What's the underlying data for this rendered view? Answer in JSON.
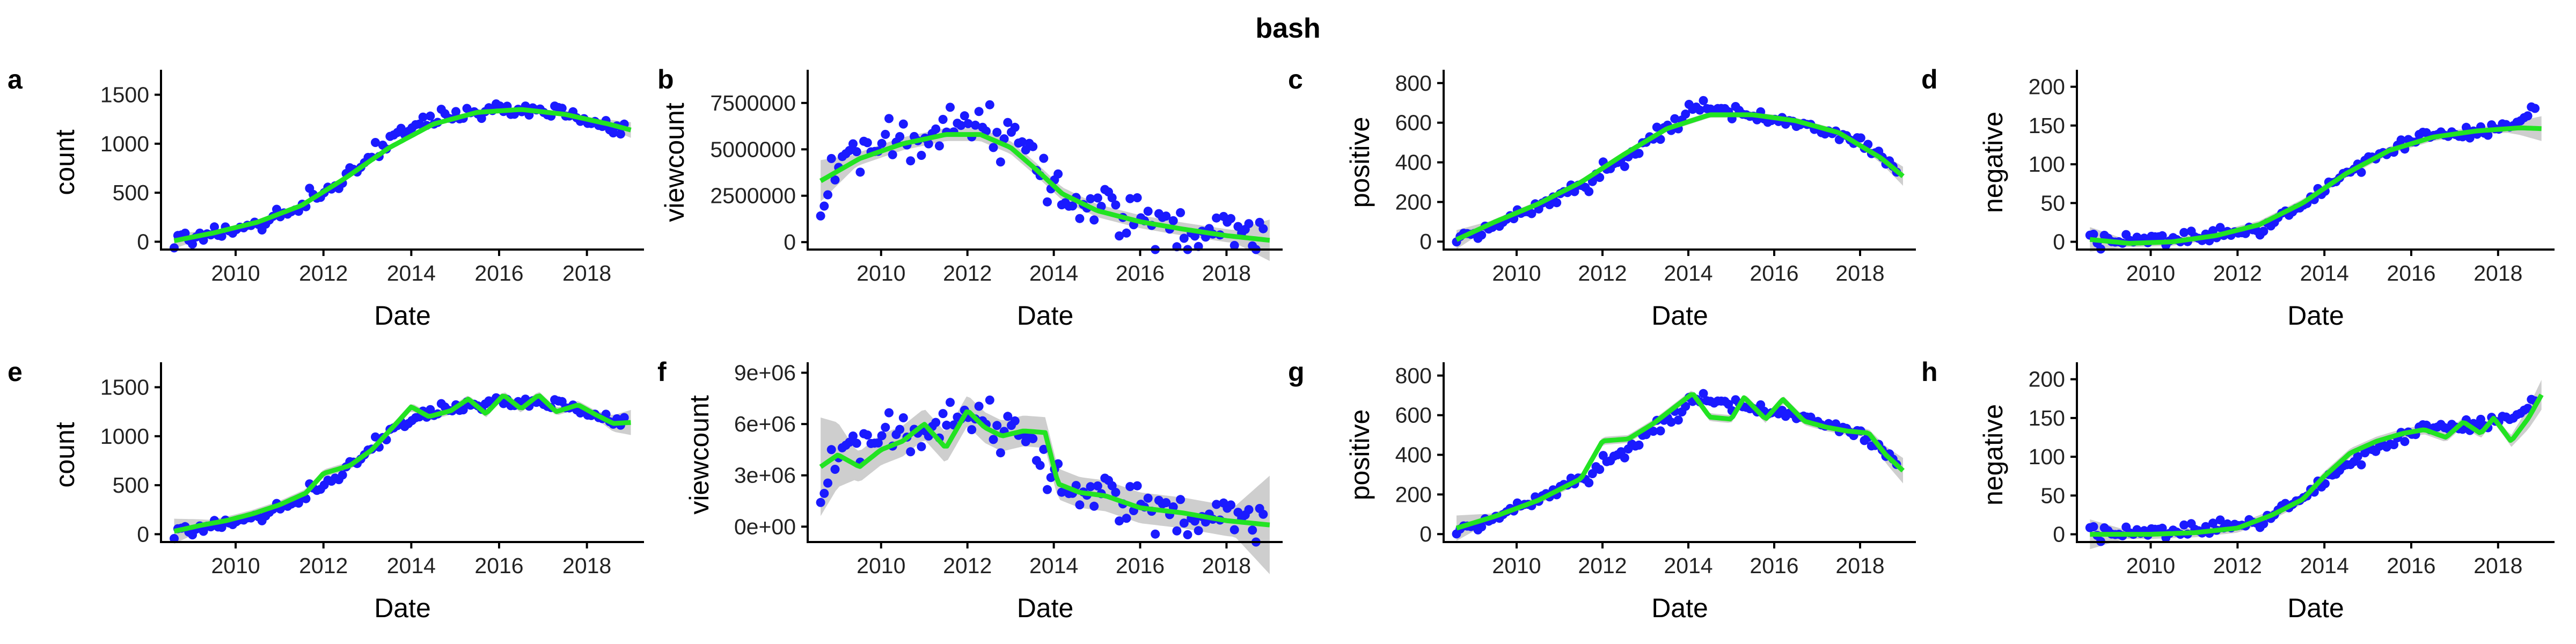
{
  "figure_title": "bash",
  "colors": {
    "points": "#1a1aff",
    "fit": "#22e322",
    "band": "#bdbdbd"
  },
  "chart_data": [
    {
      "panel": "a",
      "type": "scatter",
      "fit": "loess",
      "xlabel": "Date",
      "ylabel": "count",
      "xlim": [
        2008.3,
        2019.3
      ],
      "ylim": [
        -80,
        1700
      ],
      "xticks": [
        2010,
        2012,
        2014,
        2016,
        2018
      ],
      "yticks": [
        0,
        500,
        1000,
        1500
      ],
      "ytick_labels": [
        "0",
        "500",
        "1000",
        "1500"
      ],
      "points_anchors": [
        [
          2008.6,
          20
        ],
        [
          2009.5,
          100
        ],
        [
          2010.5,
          180
        ],
        [
          2011.5,
          350
        ],
        [
          2012.5,
          650
        ],
        [
          2013.5,
          1050
        ],
        [
          2014.5,
          1250
        ],
        [
          2015.5,
          1330
        ],
        [
          2016.5,
          1360
        ],
        [
          2017.5,
          1320
        ],
        [
          2018.5,
          1170
        ],
        [
          2019.0,
          1150
        ]
      ],
      "fit_line": [
        [
          2008.6,
          10
        ],
        [
          2009.5,
          90
        ],
        [
          2010.5,
          200
        ],
        [
          2011.5,
          370
        ],
        [
          2012.5,
          650
        ],
        [
          2013.5,
          960
        ],
        [
          2014.5,
          1200
        ],
        [
          2015.5,
          1320
        ],
        [
          2016.5,
          1350
        ],
        [
          2017.5,
          1300
        ],
        [
          2018.5,
          1200
        ],
        [
          2019.0,
          1140
        ]
      ],
      "band": 25,
      "scatter": 90
    },
    {
      "panel": "b",
      "type": "scatter",
      "fit": "loess",
      "xlabel": "Date",
      "ylabel": "viewcount",
      "xlim": [
        2008.3,
        2019.3
      ],
      "ylim": [
        -400000,
        9000000
      ],
      "xticks": [
        2010,
        2012,
        2014,
        2016,
        2018
      ],
      "yticks": [
        0,
        2500000,
        5000000,
        7500000
      ],
      "ytick_labels": [
        "0",
        "2500000",
        "5000000",
        "7500000"
      ],
      "points_anchors": [
        [
          2008.6,
          2000000
        ],
        [
          2009.2,
          4800000
        ],
        [
          2010.0,
          5000000
        ],
        [
          2010.8,
          5500000
        ],
        [
          2011.5,
          6000000
        ],
        [
          2012.3,
          6300000
        ],
        [
          2013.0,
          5600000
        ],
        [
          2013.6,
          4200000
        ],
        [
          2014.2,
          2200000
        ],
        [
          2015.0,
          1700000
        ],
        [
          2016.0,
          1100000
        ],
        [
          2017.0,
          800000
        ],
        [
          2018.0,
          400000
        ],
        [
          2019.0,
          100000
        ]
      ],
      "fit_line": [
        [
          2008.6,
          3300000
        ],
        [
          2009.5,
          4500000
        ],
        [
          2010.5,
          5300000
        ],
        [
          2011.5,
          5800000
        ],
        [
          2012.3,
          5800000
        ],
        [
          2013.0,
          5100000
        ],
        [
          2013.6,
          3900000
        ],
        [
          2014.2,
          2600000
        ],
        [
          2015.0,
          1700000
        ],
        [
          2016.0,
          1100000
        ],
        [
          2017.0,
          700000
        ],
        [
          2018.0,
          350000
        ],
        [
          2019.0,
          100000
        ]
      ],
      "band": 350000,
      "scatter": 1400000
    },
    {
      "panel": "c",
      "type": "scatter",
      "fit": "loess",
      "xlabel": "Date",
      "ylabel": "positive",
      "xlim": [
        2008.3,
        2019.3
      ],
      "ylim": [
        -40,
        840
      ],
      "xticks": [
        2010,
        2012,
        2014,
        2016,
        2018
      ],
      "yticks": [
        0,
        200,
        400,
        600,
        800
      ],
      "ytick_labels": [
        "0",
        "200",
        "400",
        "600",
        "800"
      ],
      "points_anchors": [
        [
          2008.6,
          20
        ],
        [
          2009.5,
          90
        ],
        [
          2010.5,
          170
        ],
        [
          2011.5,
          280
        ],
        [
          2012.5,
          430
        ],
        [
          2013.5,
          580
        ],
        [
          2014.2,
          700
        ],
        [
          2015.0,
          650
        ],
        [
          2016.0,
          620
        ],
        [
          2017.0,
          570
        ],
        [
          2018.0,
          500
        ],
        [
          2019.0,
          330
        ]
      ],
      "fit_line": [
        [
          2008.6,
          10
        ],
        [
          2009.5,
          100
        ],
        [
          2010.5,
          190
        ],
        [
          2011.5,
          300
        ],
        [
          2012.5,
          440
        ],
        [
          2013.5,
          570
        ],
        [
          2014.5,
          640
        ],
        [
          2015.5,
          640
        ],
        [
          2016.5,
          610
        ],
        [
          2017.5,
          550
        ],
        [
          2018.5,
          420
        ],
        [
          2019.0,
          330
        ]
      ],
      "band": 15,
      "scatter": 45
    },
    {
      "panel": "d",
      "type": "scatter",
      "fit": "loess",
      "xlabel": "Date",
      "ylabel": "negative",
      "xlim": [
        2008.3,
        2019.3
      ],
      "ylim": [
        -10,
        215
      ],
      "xticks": [
        2010,
        2012,
        2014,
        2016,
        2018
      ],
      "yticks": [
        0,
        50,
        100,
        150,
        200
      ],
      "ytick_labels": [
        "0",
        "50",
        "100",
        "150",
        "200"
      ],
      "points_anchors": [
        [
          2008.6,
          2
        ],
        [
          2009.5,
          2
        ],
        [
          2010.5,
          3
        ],
        [
          2011.5,
          8
        ],
        [
          2012.5,
          18
        ],
        [
          2013.5,
          45
        ],
        [
          2014.5,
          90
        ],
        [
          2015.5,
          120
        ],
        [
          2016.5,
          140
        ],
        [
          2017.5,
          140
        ],
        [
          2018.5,
          150
        ],
        [
          2019.0,
          190
        ]
      ],
      "fit_line": [
        [
          2008.6,
          3
        ],
        [
          2009.5,
          -2
        ],
        [
          2010.5,
          0
        ],
        [
          2011.5,
          8
        ],
        [
          2012.5,
          22
        ],
        [
          2013.5,
          50
        ],
        [
          2014.5,
          88
        ],
        [
          2015.5,
          118
        ],
        [
          2016.5,
          135
        ],
        [
          2017.5,
          143
        ],
        [
          2018.5,
          147
        ],
        [
          2019.0,
          146
        ]
      ],
      "band": 5,
      "scatter": 10
    },
    {
      "panel": "e",
      "type": "scatter",
      "fit": "loess",
      "xlabel": "Date",
      "ylabel": "count",
      "xlim": [
        2008.3,
        2019.3
      ],
      "ylim": [
        -80,
        1700
      ],
      "xticks": [
        2010,
        2012,
        2014,
        2016,
        2018
      ],
      "yticks": [
        0,
        500,
        1000,
        1500
      ],
      "ytick_labels": [
        "0",
        "500",
        "1000",
        "1500"
      ],
      "points_anchors": [
        [
          2008.6,
          20
        ],
        [
          2009.5,
          100
        ],
        [
          2010.5,
          180
        ],
        [
          2011.5,
          350
        ],
        [
          2012.5,
          650
        ],
        [
          2013.5,
          1050
        ],
        [
          2014.5,
          1250
        ],
        [
          2015.5,
          1330
        ],
        [
          2016.5,
          1360
        ],
        [
          2017.5,
          1320
        ],
        [
          2018.5,
          1170
        ],
        [
          2019.0,
          1150
        ]
      ],
      "fit_line": [
        [
          2008.6,
          30
        ],
        [
          2009.2,
          90
        ],
        [
          2009.8,
          140
        ],
        [
          2010.4,
          210
        ],
        [
          2011.0,
          300
        ],
        [
          2011.6,
          420
        ],
        [
          2012.0,
          620
        ],
        [
          2012.6,
          700
        ],
        [
          2013.1,
          860
        ],
        [
          2013.7,
          1150
        ],
        [
          2014.0,
          1300
        ],
        [
          2014.4,
          1200
        ],
        [
          2014.9,
          1260
        ],
        [
          2015.3,
          1380
        ],
        [
          2015.7,
          1230
        ],
        [
          2016.1,
          1420
        ],
        [
          2016.5,
          1280
        ],
        [
          2016.9,
          1420
        ],
        [
          2017.3,
          1250
        ],
        [
          2017.8,
          1320
        ],
        [
          2018.2,
          1220
        ],
        [
          2018.6,
          1130
        ],
        [
          2019.0,
          1140
        ]
      ],
      "band": 40,
      "scatter": 70
    },
    {
      "panel": "f",
      "type": "scatter",
      "fit": "loess",
      "xlabel": "Date",
      "ylabel": "viewcount",
      "xlim": [
        2008.3,
        2019.3
      ],
      "ylim": [
        -900000,
        9300000
      ],
      "xticks": [
        2010,
        2012,
        2014,
        2016,
        2018
      ],
      "yticks": [
        0,
        3000000,
        6000000,
        9000000
      ],
      "ytick_labels": [
        "0e+00",
        "3e+06",
        "6e+06",
        "9e+06"
      ],
      "points_anchors": [
        [
          2008.6,
          2000000
        ],
        [
          2009.2,
          4800000
        ],
        [
          2010.0,
          5000000
        ],
        [
          2010.8,
          5500000
        ],
        [
          2011.5,
          6000000
        ],
        [
          2012.3,
          6300000
        ],
        [
          2013.0,
          5600000
        ],
        [
          2013.6,
          4200000
        ],
        [
          2014.2,
          2200000
        ],
        [
          2015.0,
          1700000
        ],
        [
          2016.0,
          1100000
        ],
        [
          2017.0,
          800000
        ],
        [
          2018.0,
          400000
        ],
        [
          2019.0,
          100000
        ]
      ],
      "fit_line": [
        [
          2008.6,
          3500000
        ],
        [
          2009.0,
          4200000
        ],
        [
          2009.5,
          3500000
        ],
        [
          2010.0,
          4500000
        ],
        [
          2010.5,
          5000000
        ],
        [
          2011.0,
          6000000
        ],
        [
          2011.5,
          4600000
        ],
        [
          2012.0,
          6800000
        ],
        [
          2012.4,
          5800000
        ],
        [
          2012.8,
          5300000
        ],
        [
          2013.3,
          5600000
        ],
        [
          2013.8,
          5500000
        ],
        [
          2014.1,
          2500000
        ],
        [
          2014.6,
          2000000
        ],
        [
          2015.2,
          1800000
        ],
        [
          2016.0,
          1100000
        ],
        [
          2017.0,
          800000
        ],
        [
          2018.0,
          350000
        ],
        [
          2019.0,
          100000
        ]
      ],
      "band": 900000,
      "scatter": 1400000
    },
    {
      "panel": "g",
      "type": "scatter",
      "fit": "loess",
      "xlabel": "Date",
      "ylabel": "positive",
      "xlim": [
        2008.3,
        2019.3
      ],
      "ylim": [
        -40,
        840
      ],
      "xticks": [
        2010,
        2012,
        2014,
        2016,
        2018
      ],
      "yticks": [
        0,
        200,
        400,
        600,
        800
      ],
      "ytick_labels": [
        "0",
        "200",
        "400",
        "600",
        "800"
      ],
      "points_anchors": [
        [
          2008.6,
          20
        ],
        [
          2009.5,
          90
        ],
        [
          2010.5,
          170
        ],
        [
          2011.5,
          280
        ],
        [
          2012.5,
          430
        ],
        [
          2013.5,
          580
        ],
        [
          2014.2,
          700
        ],
        [
          2015.0,
          650
        ],
        [
          2016.0,
          620
        ],
        [
          2017.0,
          570
        ],
        [
          2018.0,
          500
        ],
        [
          2019.0,
          330
        ]
      ],
      "fit_line": [
        [
          2008.6,
          30
        ],
        [
          2009.5,
          90
        ],
        [
          2010.5,
          170
        ],
        [
          2011.5,
          280
        ],
        [
          2012.0,
          470
        ],
        [
          2012.6,
          480
        ],
        [
          2013.2,
          560
        ],
        [
          2013.8,
          660
        ],
        [
          2014.1,
          710
        ],
        [
          2014.5,
          590
        ],
        [
          2015.0,
          580
        ],
        [
          2015.3,
          690
        ],
        [
          2015.8,
          580
        ],
        [
          2016.2,
          680
        ],
        [
          2016.7,
          570
        ],
        [
          2017.2,
          540
        ],
        [
          2017.7,
          520
        ],
        [
          2018.2,
          510
        ],
        [
          2018.6,
          400
        ],
        [
          2019.0,
          320
        ]
      ],
      "band": 20,
      "scatter": 40
    },
    {
      "panel": "h",
      "type": "scatter",
      "fit": "loess",
      "xlabel": "Date",
      "ylabel": "negative",
      "xlim": [
        2008.3,
        2019.3
      ],
      "ylim": [
        -10,
        215
      ],
      "xticks": [
        2010,
        2012,
        2014,
        2016,
        2018
      ],
      "yticks": [
        0,
        50,
        100,
        150,
        200
      ],
      "ytick_labels": [
        "0",
        "50",
        "100",
        "150",
        "200"
      ],
      "points_anchors": [
        [
          2008.6,
          2
        ],
        [
          2009.5,
          2
        ],
        [
          2010.5,
          3
        ],
        [
          2011.5,
          8
        ],
        [
          2012.5,
          18
        ],
        [
          2013.5,
          45
        ],
        [
          2014.5,
          90
        ],
        [
          2015.5,
          120
        ],
        [
          2016.5,
          140
        ],
        [
          2017.5,
          140
        ],
        [
          2018.5,
          150
        ],
        [
          2019.0,
          190
        ]
      ],
      "fit_line": [
        [
          2008.6,
          0
        ],
        [
          2010.0,
          0
        ],
        [
          2011.0,
          2
        ],
        [
          2012.0,
          8
        ],
        [
          2012.8,
          25
        ],
        [
          2013.5,
          45
        ],
        [
          2014.0,
          75
        ],
        [
          2014.6,
          105
        ],
        [
          2015.2,
          120
        ],
        [
          2015.8,
          130
        ],
        [
          2016.3,
          135
        ],
        [
          2016.8,
          125
        ],
        [
          2017.2,
          145
        ],
        [
          2017.6,
          130
        ],
        [
          2017.9,
          150
        ],
        [
          2018.3,
          120
        ],
        [
          2018.7,
          150
        ],
        [
          2019.0,
          180
        ]
      ],
      "band": 6,
      "scatter": 10
    }
  ]
}
